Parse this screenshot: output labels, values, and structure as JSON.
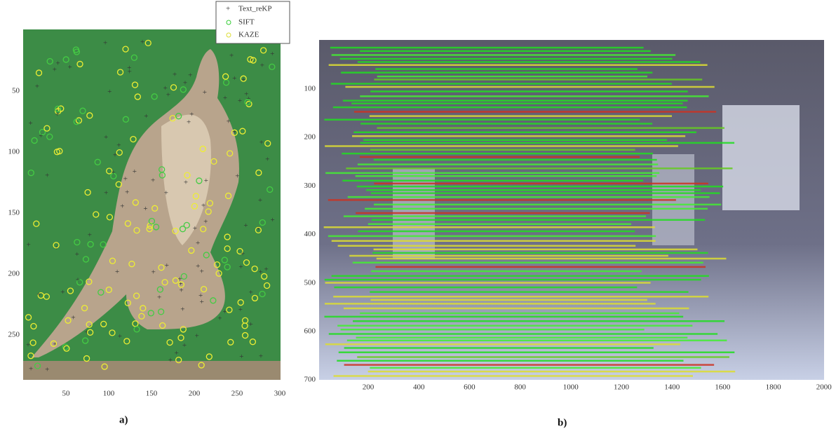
{
  "panels": [
    {
      "caption": "a)",
      "yticks": [
        "50",
        "100",
        "150",
        "200",
        "250"
      ],
      "xticks": [
        "50",
        "100",
        "150",
        "200",
        "250",
        "300"
      ],
      "legend": [
        "Text_reKP",
        "SIFT",
        "KAZE"
      ]
    },
    {
      "caption": "b)",
      "yticks": [
        "100",
        "200",
        "300",
        "400",
        "500",
        "600",
        "700"
      ],
      "xticks": [
        "200",
        "400",
        "600",
        "800",
        "1000",
        "1200",
        "1400",
        "1600",
        "1800",
        "2000"
      ]
    }
  ]
}
